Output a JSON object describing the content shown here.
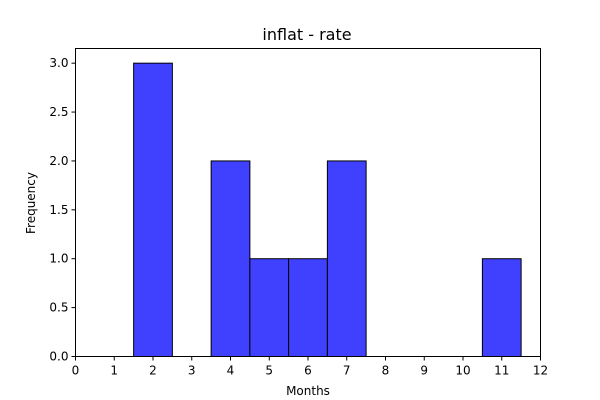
{
  "chart_data": {
    "type": "bar",
    "title": "inflat - rate",
    "xlabel": "Months",
    "ylabel": "Frequency",
    "xlim": [
      0,
      12
    ],
    "ylim": [
      0,
      3.15
    ],
    "xticks": [
      0,
      1,
      2,
      3,
      4,
      5,
      6,
      7,
      8,
      9,
      10,
      11,
      12
    ],
    "yticks": [
      "0.0",
      "0.5",
      "1.0",
      "1.5",
      "2.0",
      "2.5",
      "3.0"
    ],
    "bin_width": 1,
    "bins": [
      {
        "center": 2,
        "value": 3
      },
      {
        "center": 4,
        "value": 2
      },
      {
        "center": 5,
        "value": 1
      },
      {
        "center": 6,
        "value": 1
      },
      {
        "center": 7,
        "value": 2
      },
      {
        "center": 11,
        "value": 1
      }
    ],
    "grid": false,
    "colors": {
      "bar_fill": "#4040ff",
      "bar_edge": "#000000"
    }
  }
}
